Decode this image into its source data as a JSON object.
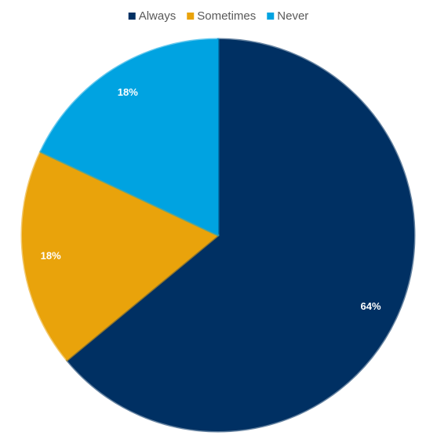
{
  "chart_data": {
    "type": "pie",
    "categories": [
      "Always",
      "Sometimes",
      "Never"
    ],
    "values": [
      64,
      18,
      18
    ],
    "value_labels": [
      "64%",
      "18%",
      "18%"
    ],
    "colors": [
      "#003063",
      "#e9a30b",
      "#00a3e1"
    ],
    "legend": "top"
  }
}
